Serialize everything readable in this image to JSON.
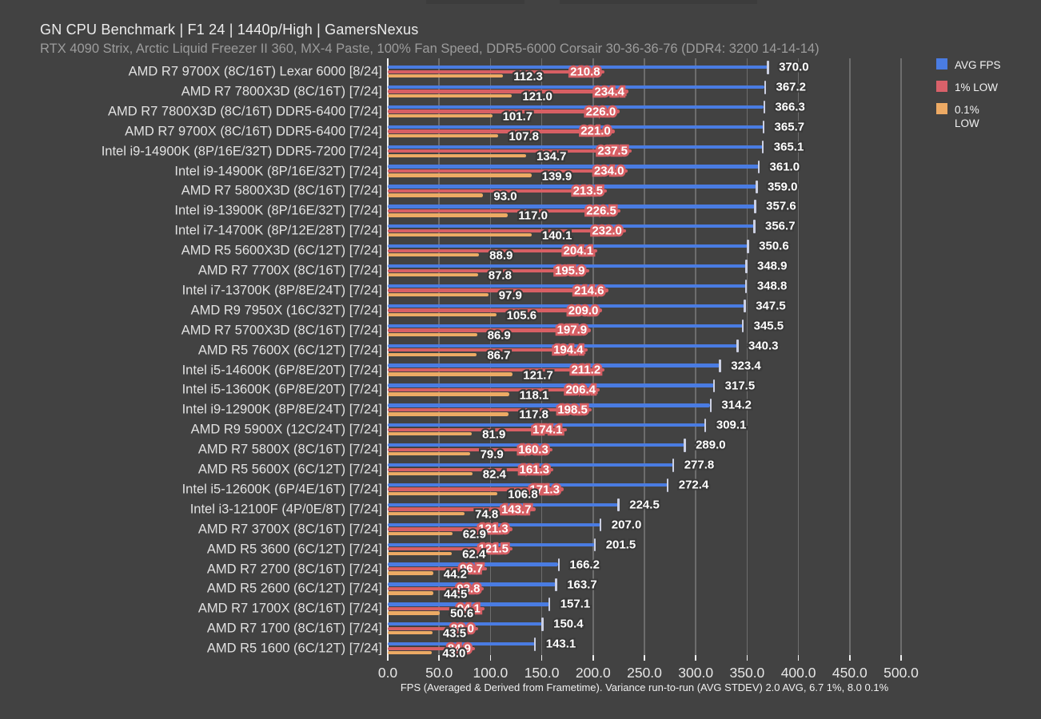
{
  "page": {
    "title": "GN CPU Benchmark | F1 24 | 1440p/High | GamersNexus",
    "subtitle": "RTX 4090 Strix, Arctic Liquid Freezer II 360, MX-4 Paste, 100% Fan Speed, DDR5-6000 Corsair 30-36-36-76 (DDR4: 3200 14-14-14)"
  },
  "legend": {
    "position": "top-right",
    "items": [
      {
        "label": "AVG FPS",
        "color": "#4a7ce2"
      },
      {
        "label": "1% LOW",
        "color": "#d9616a"
      },
      {
        "label": "0.1% LOW",
        "color": "#edaa64"
      }
    ]
  },
  "colors": {
    "background": "#424242",
    "gridline": "#6d6d6d",
    "axis_line": "#f2f2f2",
    "avg_bar": "#4a7ce2",
    "p1_bar": "#d75f64",
    "p01_bar": "#edaa64",
    "whisker": "#ccd0e2",
    "title_text": "#ececec",
    "subtitle_text": "#9c9c9c",
    "label_text": "#e2e2e2"
  },
  "chart_data": {
    "type": "bar",
    "orientation": "horizontal",
    "title": "GN CPU Benchmark | F1 24 | 1440p/High | GamersNexus",
    "subtitle": "RTX 4090 Strix, Arctic Liquid Freezer II 360, MX-4 Paste, 100% Fan Speed, DDR5-6000 Corsair 30-36-36-76 (DDR4: 3200 14-14-14)",
    "xlabel": "FPS (Averaged & Derived from Frametime). Variance run-to-run (AVG STDEV) 2.0 AVG, 6.7 1%, 8.0 0.1%",
    "ylabel": "",
    "xlim": [
      0,
      500
    ],
    "xtick_step": 50,
    "xtick_labels": [
      "0.0",
      "50.0",
      "100.0",
      "150.0",
      "200.0",
      "250.0",
      "300.0",
      "350.0",
      "400.0",
      "450.0",
      "500.0"
    ],
    "grid": "vertical",
    "legend_position": "top-right",
    "categories": [
      "AMD R7 9700X (8C/16T) Lexar 6000 [8/24]",
      "AMD R7 7800X3D (8C/16T) [7/24]",
      "AMD R7 7800X3D (8C/16T) DDR5-6400 [7/24]",
      "AMD R7 9700X (8C/16T) DDR5-6400 [7/24]",
      "Intel i9-14900K (8P/16E/32T) DDR5-7200 [7/24]",
      "Intel i9-14900K (8P/16E/32T) [7/24]",
      "AMD R7 5800X3D (8C/16T) [7/24]",
      "Intel i9-13900K (8P/16E/32T) [7/24]",
      "Intel i7-14700K (8P/12E/28T) [7/24]",
      "AMD R5 5600X3D (6C/12T) [7/24]",
      "AMD R7 7700X (8C/16T) [7/24]",
      "Intel i7-13700K (8P/8E/24T) [7/24]",
      "AMD R9 7950X (16C/32T) [7/24]",
      "AMD R7 5700X3D (8C/16T) [7/24]",
      "AMD R5 7600X (6C/12T) [7/24]",
      "Intel i5-14600K (6P/8E/20T) [7/24]",
      "Intel i5-13600K (6P/8E/20T) [7/24]",
      "Intel i9-12900K (8P/8E/24T) [7/24]",
      "AMD R9 5900X (12C/24T) [7/24]",
      "AMD R7 5800X (8C/16T) [7/24]",
      "AMD R5 5600X (6C/12T) [7/24]",
      "Intel i5-12600K (6P/4E/16T) [7/24]",
      "Intel i3-12100F (4P/0E/8T) [7/24]",
      "AMD R7 3700X (8C/16T) [7/24]",
      "AMD R5 3600 (6C/12T) [7/24]",
      "AMD R7 2700 (8C/16T) [7/24]",
      "AMD R5 2600 (6C/12T) [7/24]",
      "AMD R7 1700X (8C/16T) [7/24]",
      "AMD R7 1700 (8C/16T) [7/24]",
      "AMD R5 1600 (6C/12T) [7/24]"
    ],
    "series": [
      {
        "name": "AVG FPS",
        "color": "#4a7ce2",
        "values": [
          370.0,
          367.2,
          366.3,
          365.7,
          365.1,
          361.0,
          359.0,
          357.6,
          356.7,
          350.6,
          348.9,
          348.8,
          347.5,
          345.5,
          340.3,
          323.4,
          317.5,
          314.2,
          309.1,
          289.0,
          277.8,
          272.4,
          224.5,
          207.0,
          201.5,
          166.2,
          163.7,
          157.1,
          150.4,
          143.1
        ]
      },
      {
        "name": "1% LOW",
        "color": "#d75f64",
        "values": [
          210.8,
          234.4,
          226.0,
          221.0,
          237.5,
          234.0,
          213.5,
          226.5,
          232.0,
          204.1,
          195.9,
          214.6,
          209.0,
          197.9,
          194.4,
          211.2,
          206.4,
          198.5,
          174.1,
          160.3,
          161.3,
          171.3,
          143.7,
          121.3,
          121.5,
          96.7,
          93.8,
          94.1,
          88.0,
          84.9
        ]
      },
      {
        "name": "0.1% LOW",
        "color": "#edaa64",
        "values": [
          112.3,
          121.0,
          101.7,
          107.8,
          134.7,
          139.9,
          93.0,
          117.0,
          140.1,
          88.9,
          87.8,
          97.9,
          105.6,
          86.9,
          86.7,
          121.7,
          118.1,
          117.8,
          81.9,
          79.9,
          82.4,
          106.8,
          74.8,
          62.9,
          62.4,
          44.2,
          44.5,
          50.6,
          43.5,
          43.0
        ]
      }
    ]
  }
}
